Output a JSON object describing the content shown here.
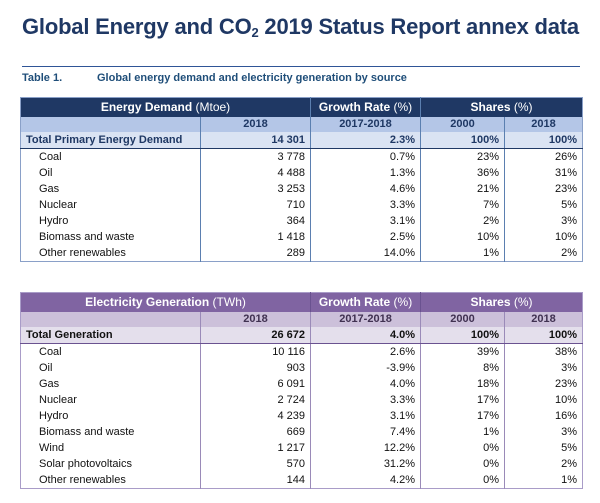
{
  "header": {
    "title_main": "Global Energy and CO",
    "title_sub": "2",
    "title_tail": " 2019 Status Report annex data"
  },
  "caption": {
    "label": "Table 1.",
    "text": "Global energy demand and electricity generation by source"
  },
  "energy_table": {
    "headers": {
      "main_bold": "Energy Demand",
      "main_unit": " (Mtoe)",
      "growth_bold": "Growth Rate",
      "growth_unit": " (%)",
      "shares_bold": "Shares",
      "shares_unit": " (%)"
    },
    "subheaders": [
      "2018",
      "2017-2018",
      "2000",
      "2018"
    ],
    "total": {
      "label": "Total Primary Energy Demand",
      "value": "14 301",
      "growth": "2.3%",
      "share2000": "100%",
      "share2018": "100%"
    },
    "rows": [
      {
        "label": "Coal",
        "value": "3 778",
        "growth": "0.7%",
        "share2000": "23%",
        "share2018": "26%"
      },
      {
        "label": "Oil",
        "value": "4 488",
        "growth": "1.3%",
        "share2000": "36%",
        "share2018": "31%"
      },
      {
        "label": "Gas",
        "value": "3 253",
        "growth": "4.6%",
        "share2000": "21%",
        "share2018": "23%"
      },
      {
        "label": "Nuclear",
        "value": "710",
        "growth": "3.3%",
        "share2000": "7%",
        "share2018": "5%"
      },
      {
        "label": "Hydro",
        "value": "364",
        "growth": "3.1%",
        "share2000": "2%",
        "share2018": "3%"
      },
      {
        "label": "Biomass and waste",
        "value": "1 418",
        "growth": "2.5%",
        "share2000": "10%",
        "share2018": "10%"
      },
      {
        "label": "Other renewables",
        "value": "289",
        "growth": "14.0%",
        "share2000": "1%",
        "share2018": "2%"
      }
    ]
  },
  "electricity_table": {
    "headers": {
      "main_bold": "Electricity Generation",
      "main_unit": " (TWh)",
      "growth_bold": "Growth Rate",
      "growth_unit": " (%)",
      "shares_bold": "Shares",
      "shares_unit": " (%)"
    },
    "subheaders": [
      "2018",
      "2017-2018",
      "2000",
      "2018"
    ],
    "total": {
      "label": "Total Generation",
      "value": "26 672",
      "growth": "4.0%",
      "share2000": "100%",
      "share2018": "100%"
    },
    "rows": [
      {
        "label": "Coal",
        "value": "10 116",
        "growth": "2.6%",
        "share2000": "39%",
        "share2018": "38%"
      },
      {
        "label": "Oil",
        "value": "903",
        "growth": "-3.9%",
        "share2000": "8%",
        "share2018": "3%"
      },
      {
        "label": "Gas",
        "value": "6 091",
        "growth": "4.0%",
        "share2000": "18%",
        "share2018": "23%"
      },
      {
        "label": "Nuclear",
        "value": "2 724",
        "growth": "3.3%",
        "share2000": "17%",
        "share2018": "10%"
      },
      {
        "label": "Hydro",
        "value": "4 239",
        "growth": "3.1%",
        "share2000": "17%",
        "share2018": "16%"
      },
      {
        "label": "Biomass and waste",
        "value": "669",
        "growth": "7.4%",
        "share2000": "1%",
        "share2018": "3%"
      },
      {
        "label": "Wind",
        "value": "1 217",
        "growth": "12.2%",
        "share2000": "0%",
        "share2018": "5%"
      },
      {
        "label": "Solar photovoltaics",
        "value": "570",
        "growth": "31.2%",
        "share2000": "0%",
        "share2018": "2%"
      },
      {
        "label": "Other renewables",
        "value": "144",
        "growth": "4.2%",
        "share2000": "0%",
        "share2018": "1%"
      }
    ]
  }
}
